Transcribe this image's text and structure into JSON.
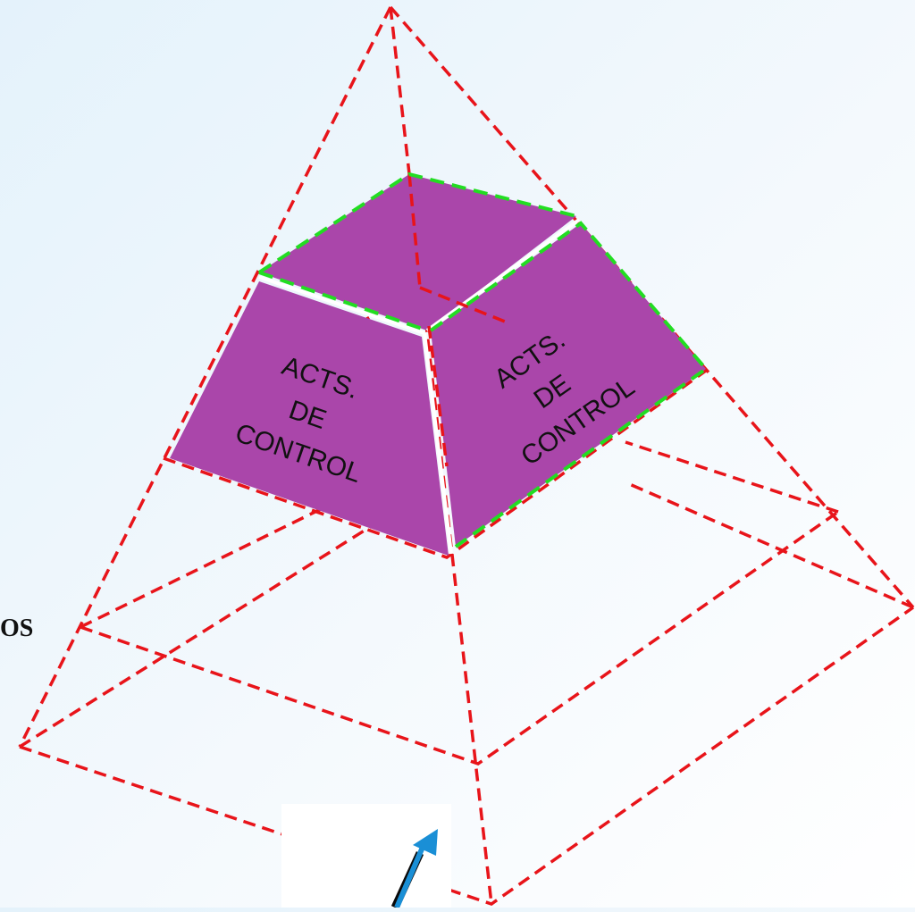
{
  "colors": {
    "background": "#eaf5fc",
    "pyramid_outline": "#e8141a",
    "highlight_outline": "#22dd22",
    "block_fill": "#aa46aa",
    "block_edge": "#ffffff",
    "arrow": "#1a8fd6"
  },
  "side_label": "OS",
  "faces": {
    "left": {
      "lines": [
        "ACTS.",
        "DE",
        "CONTROL"
      ]
    },
    "right": {
      "lines": [
        "ACTS.",
        "DE",
        "CONTROL"
      ]
    }
  },
  "icons": [
    "up-arrow-icon"
  ]
}
